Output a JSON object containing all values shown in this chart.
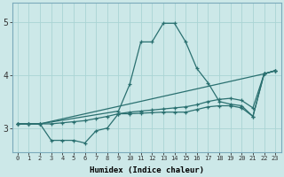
{
  "xlabel": "Humidex (Indice chaleur)",
  "bg_color": "#cce8e8",
  "line_color": "#2a7070",
  "grid_color": "#aad4d4",
  "spine_color": "#7aaabb",
  "xlim": [
    -0.5,
    23.5
  ],
  "ylim": [
    2.55,
    5.35
  ],
  "yticks": [
    3,
    4,
    5
  ],
  "xticks": [
    0,
    1,
    2,
    3,
    4,
    5,
    6,
    7,
    8,
    9,
    10,
    11,
    12,
    13,
    14,
    15,
    16,
    17,
    18,
    19,
    20,
    21,
    22,
    23
  ],
  "lines": [
    {
      "x": [
        0,
        1,
        2,
        22,
        23
      ],
      "y": [
        3.08,
        3.08,
        3.08,
        4.02,
        4.08
      ]
    },
    {
      "x": [
        0,
        1,
        2,
        3,
        4,
        5,
        6,
        7,
        8,
        9,
        10,
        11,
        12,
        13,
        14,
        15,
        16,
        17,
        18,
        19,
        20,
        21,
        22,
        23
      ],
      "y": [
        3.08,
        3.08,
        3.08,
        2.77,
        2.77,
        2.77,
        2.72,
        2.95,
        3.0,
        3.27,
        3.27,
        3.28,
        3.29,
        3.3,
        3.3,
        3.3,
        3.35,
        3.4,
        3.42,
        3.42,
        3.38,
        3.22,
        4.02,
        4.08
      ]
    },
    {
      "x": [
        0,
        1,
        2,
        9,
        10,
        11,
        12,
        13,
        14,
        15,
        16,
        17,
        18,
        19,
        20,
        21,
        22,
        23
      ],
      "y": [
        3.08,
        3.08,
        3.08,
        3.32,
        3.82,
        4.62,
        4.62,
        4.97,
        4.97,
        4.62,
        4.12,
        3.85,
        3.5,
        3.45,
        3.42,
        3.22,
        4.02,
        4.08
      ]
    },
    {
      "x": [
        0,
        1,
        2,
        3,
        4,
        5,
        6,
        7,
        8,
        9,
        10,
        11,
        12,
        13,
        14,
        15,
        16,
        17,
        18,
        19,
        20,
        21,
        22,
        23
      ],
      "y": [
        3.08,
        3.08,
        3.08,
        3.08,
        3.1,
        3.12,
        3.14,
        3.18,
        3.22,
        3.27,
        3.3,
        3.32,
        3.34,
        3.36,
        3.38,
        3.4,
        3.44,
        3.5,
        3.54,
        3.56,
        3.52,
        3.38,
        4.02,
        4.08
      ]
    }
  ]
}
